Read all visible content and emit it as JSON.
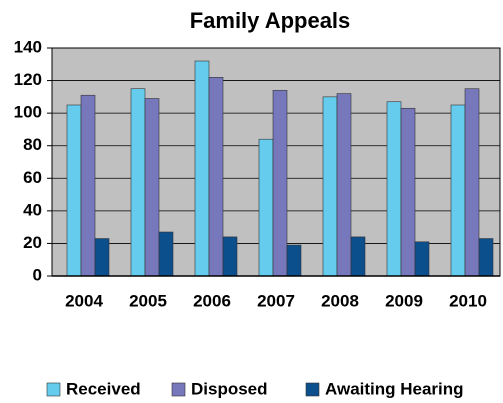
{
  "chart_data": {
    "type": "bar",
    "title": "Family Appeals",
    "categories": [
      "2004",
      "2005",
      "2006",
      "2007",
      "2008",
      "2009",
      "2010"
    ],
    "series": [
      {
        "name": "Received",
        "color": "#66ccee",
        "values": [
          105,
          115,
          132,
          84,
          110,
          107,
          105
        ]
      },
      {
        "name": "Disposed",
        "color": "#7777bb",
        "values": [
          111,
          109,
          122,
          114,
          112,
          103,
          115
        ]
      },
      {
        "name": "Awaiting Hearing",
        "color": "#0b4f8c",
        "values": [
          23,
          27,
          24,
          19,
          24,
          21,
          23
        ]
      }
    ],
    "ylim": [
      0,
      140
    ],
    "yticks": [
      0,
      20,
      40,
      60,
      80,
      100,
      120,
      140
    ],
    "grid": true,
    "legend": "bottom",
    "background": "#c0c0c0"
  }
}
